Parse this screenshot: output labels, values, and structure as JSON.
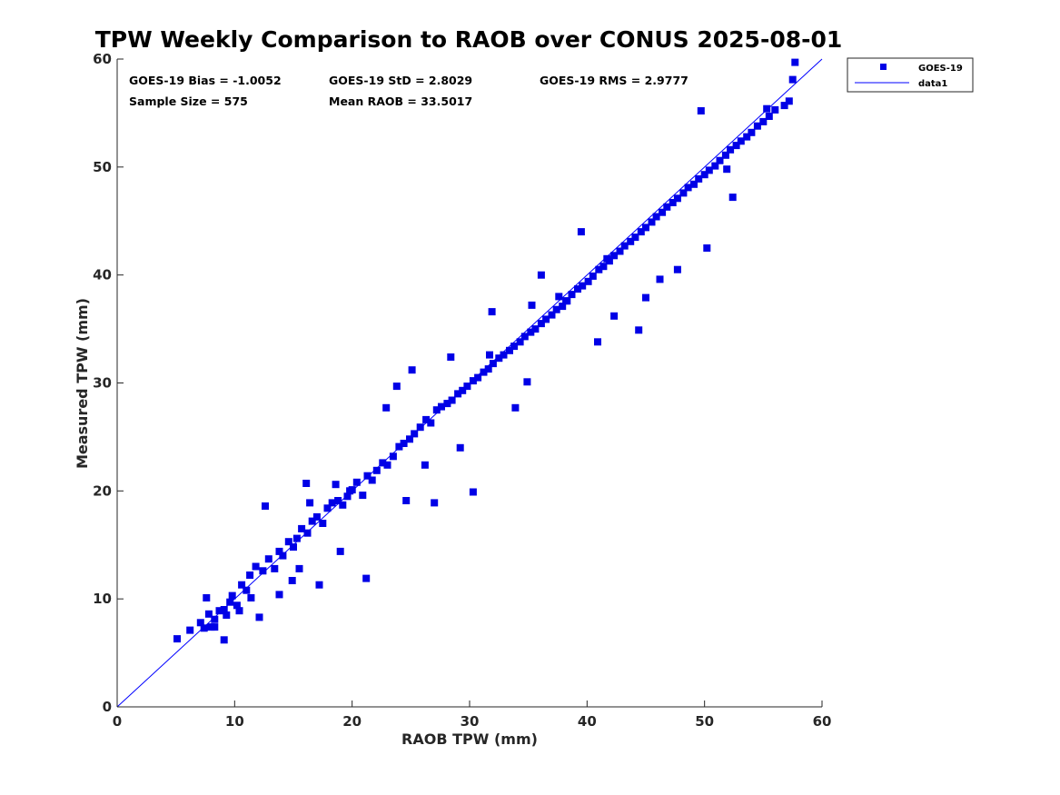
{
  "chart_data": {
    "type": "scatter",
    "title": "TPW Weekly Comparison to RAOB over CONUS 2025-08-01",
    "xlabel": "RAOB TPW (mm)",
    "ylabel": "Measured TPW (mm)",
    "xlim": [
      0,
      60
    ],
    "ylim": [
      0,
      60
    ],
    "xticks": [
      "0",
      "10",
      "20",
      "30",
      "40",
      "50",
      "60"
    ],
    "yticks": [
      "0",
      "10",
      "20",
      "30",
      "40",
      "50",
      "60"
    ],
    "grid": false,
    "legend_position": "outside-top-right",
    "stats": {
      "bias": "GOES-19 Bias = -1.0052",
      "std": "GOES-19 StD = 2.8029",
      "rms": "GOES-19 RMS = 2.9777",
      "sample_size": "Sample Size = 575",
      "mean_raob": "Mean RAOB = 33.5017"
    },
    "series": [
      {
        "name": "GOES-19",
        "kind": "scatter",
        "marker": "square",
        "color": "#0000e6",
        "points_count": 575,
        "points_shown_note": "approximate sample of visible points",
        "x": [
          5.1,
          6.2,
          7.1,
          7.4,
          7.8,
          8.0,
          8.3,
          8.7,
          9.1,
          9.3,
          9.6,
          9.8,
          10.2,
          10.6,
          11.0,
          11.3,
          11.8,
          12.4,
          12.9,
          13.4,
          13.8,
          14.1,
          14.6,
          15.0,
          15.3,
          15.7,
          16.2,
          16.6,
          17.0,
          17.5,
          17.9,
          18.3,
          18.8,
          19.2,
          19.6,
          20.0,
          20.4,
          20.9,
          21.3,
          21.7,
          22.1,
          22.6,
          23.0,
          23.5,
          24.0,
          24.4,
          24.9,
          25.3,
          25.8,
          26.3,
          26.7,
          27.2,
          27.6,
          28.1,
          28.5,
          29.0,
          29.4,
          29.8,
          30.3,
          30.7,
          31.2,
          31.6,
          32.0,
          32.5,
          32.9,
          33.4,
          33.8,
          34.3,
          34.7,
          35.2,
          35.6,
          36.1,
          36.5,
          37.0,
          37.4,
          37.9,
          38.3,
          38.7,
          39.2,
          39.6,
          40.1,
          40.5,
          41.0,
          41.4,
          41.9,
          42.3,
          42.8,
          43.2,
          43.7,
          44.1,
          44.6,
          45.0,
          45.5,
          45.9,
          46.4,
          46.8,
          47.3,
          47.7,
          48.2,
          48.6,
          49.1,
          49.5,
          50.0,
          50.4,
          50.9,
          51.3,
          51.8,
          52.2,
          52.7,
          53.1,
          53.6,
          54.0,
          54.5,
          55.0,
          55.5,
          56.0,
          56.8,
          57.2,
          57.5,
          57.7,
          12.6,
          16.1,
          18.6,
          21.2,
          27.0,
          30.3,
          33.9,
          37.6,
          38.2,
          44.4,
          47.7,
          50.2,
          16.4,
          13.8,
          8.3,
          9.1,
          22.9,
          26.2,
          31.7,
          39.5,
          45.0,
          51.9,
          7.6,
          10.4,
          14.9,
          19.0,
          24.6,
          29.2,
          34.9,
          40.9,
          46.2,
          52.4,
          55.3,
          49.7,
          31.9,
          35.3,
          41.7,
          25.1,
          19.8,
          15.5,
          11.4,
          42.3,
          36.1,
          28.4,
          23.8,
          17.2,
          12.1
        ],
        "y": [
          6.3,
          7.1,
          7.8,
          7.3,
          8.6,
          7.4,
          8.1,
          8.9,
          9.0,
          8.5,
          9.7,
          10.3,
          9.4,
          11.3,
          10.8,
          12.2,
          13.0,
          12.6,
          13.7,
          12.8,
          14.4,
          14.0,
          15.3,
          14.8,
          15.6,
          16.5,
          16.1,
          17.2,
          17.6,
          17.0,
          18.4,
          18.9,
          19.1,
          18.7,
          19.5,
          20.1,
          20.8,
          19.6,
          21.4,
          21.0,
          21.9,
          22.6,
          22.4,
          23.2,
          24.1,
          24.4,
          24.8,
          25.3,
          25.9,
          26.6,
          26.3,
          27.5,
          27.8,
          28.1,
          28.4,
          29.0,
          29.3,
          29.7,
          30.2,
          30.5,
          31.0,
          31.3,
          31.8,
          32.3,
          32.6,
          33.0,
          33.4,
          33.8,
          34.3,
          34.7,
          35.0,
          35.5,
          35.9,
          36.3,
          36.8,
          37.1,
          37.6,
          38.2,
          38.7,
          39.0,
          39.4,
          39.9,
          40.5,
          40.8,
          41.3,
          41.8,
          42.2,
          42.7,
          43.1,
          43.5,
          44.0,
          44.4,
          44.9,
          45.4,
          45.8,
          46.3,
          46.7,
          47.1,
          47.6,
          48.1,
          48.4,
          48.9,
          49.3,
          49.7,
          50.1,
          50.6,
          51.1,
          51.6,
          52.0,
          52.4,
          52.8,
          53.2,
          53.8,
          54.2,
          54.7,
          55.3,
          55.7,
          56.1,
          58.1,
          59.7,
          18.6,
          20.7,
          20.6,
          11.9,
          18.9,
          19.9,
          27.7,
          38.0,
          37.6,
          34.9,
          40.5,
          42.5,
          18.9,
          10.4,
          7.4,
          6.2,
          27.7,
          22.4,
          32.6,
          44.0,
          37.9,
          49.8,
          10.1,
          8.9,
          11.7,
          14.4,
          19.1,
          24.0,
          30.1,
          33.8,
          39.6,
          47.2,
          55.4,
          55.2,
          36.6,
          37.2,
          41.5,
          31.2,
          20.0,
          12.8,
          10.1,
          36.2,
          40.0,
          32.4,
          29.7,
          11.3,
          8.3
        ]
      },
      {
        "name": "data1",
        "kind": "line",
        "color": "#0000ff",
        "x": [
          0,
          60
        ],
        "y": [
          0,
          60
        ]
      }
    ]
  }
}
